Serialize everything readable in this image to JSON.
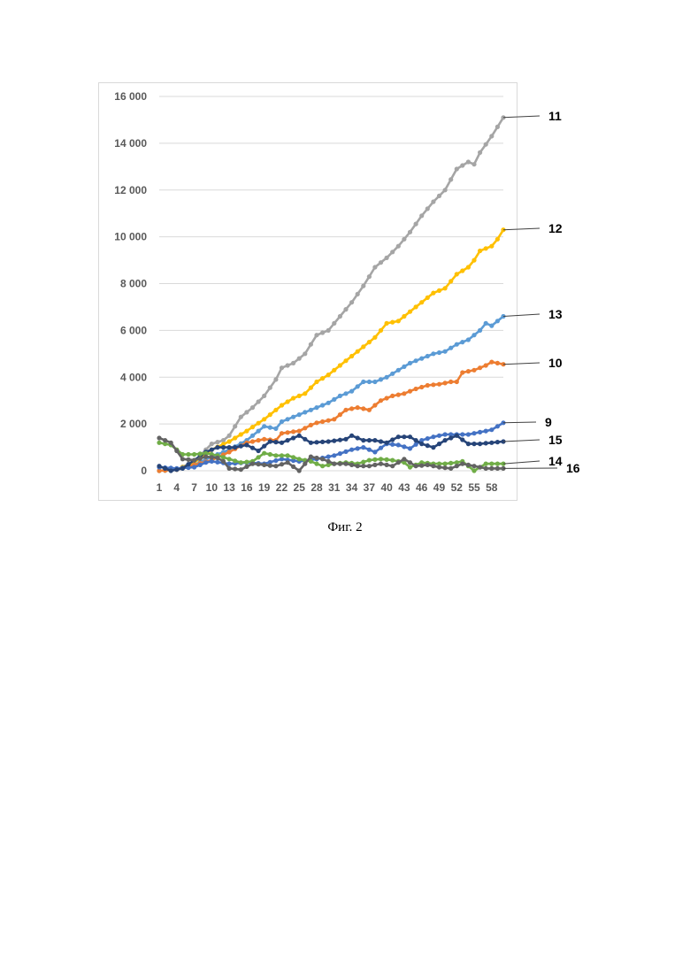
{
  "caption": "Фиг. 2",
  "chart_data": {
    "type": "line",
    "title": "",
    "xlabel": "",
    "ylabel": "",
    "ylim": [
      0,
      16000
    ],
    "yticks": [
      0,
      2000,
      4000,
      6000,
      8000,
      10000,
      12000,
      14000,
      16000
    ],
    "ytick_labels": [
      "0",
      "2 000",
      "4 000",
      "6 000",
      "8 000",
      "10 000",
      "12 000",
      "14 000",
      "16 000"
    ],
    "xlim": [
      1,
      60
    ],
    "xticks": [
      1,
      4,
      7,
      10,
      13,
      16,
      19,
      22,
      25,
      28,
      31,
      34,
      37,
      40,
      43,
      46,
      49,
      52,
      55,
      58
    ],
    "grid": "horizontal",
    "series": [
      {
        "name": "11",
        "color": "#a5a5a5",
        "points": [
          [
            1,
            0
          ],
          [
            4,
            50
          ],
          [
            7,
            400
          ],
          [
            10,
            1150
          ],
          [
            12,
            1300
          ],
          [
            13,
            1500
          ],
          [
            15,
            2300
          ],
          [
            17,
            2700
          ],
          [
            19,
            3200
          ],
          [
            21,
            3900
          ],
          [
            22,
            4400
          ],
          [
            24,
            4600
          ],
          [
            26,
            5000
          ],
          [
            28,
            5800
          ],
          [
            30,
            6000
          ],
          [
            32,
            6600
          ],
          [
            34,
            7200
          ],
          [
            36,
            7900
          ],
          [
            38,
            8700
          ],
          [
            40,
            9100
          ],
          [
            42,
            9600
          ],
          [
            44,
            10200
          ],
          [
            46,
            10900
          ],
          [
            48,
            11500
          ],
          [
            50,
            12000
          ],
          [
            52,
            12900
          ],
          [
            54,
            13200
          ],
          [
            55,
            13100
          ],
          [
            56,
            13600
          ],
          [
            58,
            14300
          ],
          [
            60,
            15100
          ]
        ]
      },
      {
        "name": "12",
        "color": "#ffc000",
        "points": [
          [
            1,
            0
          ],
          [
            4,
            50
          ],
          [
            7,
            350
          ],
          [
            10,
            900
          ],
          [
            13,
            1250
          ],
          [
            16,
            1700
          ],
          [
            19,
            2200
          ],
          [
            22,
            2800
          ],
          [
            24,
            3100
          ],
          [
            26,
            3300
          ],
          [
            28,
            3800
          ],
          [
            30,
            4100
          ],
          [
            32,
            4500
          ],
          [
            34,
            4900
          ],
          [
            36,
            5300
          ],
          [
            38,
            5700
          ],
          [
            40,
            6300
          ],
          [
            42,
            6400
          ],
          [
            44,
            6800
          ],
          [
            46,
            7200
          ],
          [
            48,
            7600
          ],
          [
            50,
            7800
          ],
          [
            52,
            8400
          ],
          [
            54,
            8700
          ],
          [
            55,
            9000
          ],
          [
            56,
            9400
          ],
          [
            58,
            9600
          ],
          [
            59,
            9900
          ],
          [
            60,
            10300
          ]
        ]
      },
      {
        "name": "13",
        "color": "#5b9bd5",
        "points": [
          [
            1,
            0
          ],
          [
            4,
            50
          ],
          [
            7,
            250
          ],
          [
            10,
            600
          ],
          [
            13,
            900
          ],
          [
            16,
            1300
          ],
          [
            19,
            1900
          ],
          [
            21,
            1800
          ],
          [
            22,
            2100
          ],
          [
            25,
            2400
          ],
          [
            28,
            2700
          ],
          [
            30,
            2900
          ],
          [
            32,
            3200
          ],
          [
            34,
            3400
          ],
          [
            36,
            3800
          ],
          [
            38,
            3800
          ],
          [
            40,
            4000
          ],
          [
            42,
            4300
          ],
          [
            44,
            4600
          ],
          [
            46,
            4800
          ],
          [
            48,
            5000
          ],
          [
            50,
            5100
          ],
          [
            52,
            5400
          ],
          [
            54,
            5600
          ],
          [
            56,
            6000
          ],
          [
            57,
            6300
          ],
          [
            58,
            6200
          ],
          [
            60,
            6600
          ]
        ]
      },
      {
        "name": "10",
        "color": "#ed7d31",
        "points": [
          [
            1,
            0
          ],
          [
            4,
            50
          ],
          [
            7,
            250
          ],
          [
            10,
            450
          ],
          [
            13,
            800
          ],
          [
            16,
            1200
          ],
          [
            19,
            1350
          ],
          [
            21,
            1300
          ],
          [
            22,
            1600
          ],
          [
            25,
            1700
          ],
          [
            27,
            1950
          ],
          [
            28,
            2050
          ],
          [
            31,
            2200
          ],
          [
            33,
            2600
          ],
          [
            35,
            2700
          ],
          [
            37,
            2600
          ],
          [
            39,
            3000
          ],
          [
            41,
            3200
          ],
          [
            43,
            3300
          ],
          [
            45,
            3500
          ],
          [
            47,
            3650
          ],
          [
            49,
            3700
          ],
          [
            51,
            3800
          ],
          [
            52,
            3800
          ],
          [
            53,
            4200
          ],
          [
            55,
            4300
          ],
          [
            57,
            4500
          ],
          [
            58,
            4650
          ],
          [
            60,
            4550
          ]
        ]
      },
      {
        "name": "9",
        "color": "#4472c4",
        "points": [
          [
            1,
            150
          ],
          [
            4,
            100
          ],
          [
            7,
            150
          ],
          [
            9,
            350
          ],
          [
            10,
            400
          ],
          [
            13,
            300
          ],
          [
            16,
            350
          ],
          [
            19,
            300
          ],
          [
            22,
            500
          ],
          [
            25,
            400
          ],
          [
            28,
            500
          ],
          [
            31,
            650
          ],
          [
            34,
            900
          ],
          [
            36,
            1000
          ],
          [
            38,
            800
          ],
          [
            40,
            1150
          ],
          [
            42,
            1100
          ],
          [
            44,
            950
          ],
          [
            46,
            1300
          ],
          [
            48,
            1450
          ],
          [
            50,
            1550
          ],
          [
            52,
            1550
          ],
          [
            54,
            1550
          ],
          [
            56,
            1650
          ],
          [
            58,
            1750
          ],
          [
            60,
            2050
          ]
        ]
      },
      {
        "name": "15",
        "color": "#264478",
        "points": [
          [
            1,
            200
          ],
          [
            3,
            0
          ],
          [
            5,
            100
          ],
          [
            7,
            450
          ],
          [
            9,
            800
          ],
          [
            11,
            1000
          ],
          [
            14,
            1000
          ],
          [
            16,
            1100
          ],
          [
            18,
            850
          ],
          [
            20,
            1250
          ],
          [
            22,
            1200
          ],
          [
            25,
            1500
          ],
          [
            27,
            1200
          ],
          [
            30,
            1250
          ],
          [
            33,
            1350
          ],
          [
            34,
            1500
          ],
          [
            36,
            1300
          ],
          [
            38,
            1300
          ],
          [
            40,
            1200
          ],
          [
            42,
            1450
          ],
          [
            44,
            1450
          ],
          [
            46,
            1150
          ],
          [
            48,
            1000
          ],
          [
            50,
            1300
          ],
          [
            52,
            1500
          ],
          [
            54,
            1150
          ],
          [
            56,
            1150
          ],
          [
            58,
            1200
          ],
          [
            60,
            1250
          ]
        ]
      },
      {
        "name": "14",
        "color": "#70ad47",
        "points": [
          [
            1,
            1200
          ],
          [
            3,
            1100
          ],
          [
            5,
            700
          ],
          [
            7,
            700
          ],
          [
            9,
            750
          ],
          [
            11,
            650
          ],
          [
            13,
            500
          ],
          [
            15,
            350
          ],
          [
            17,
            400
          ],
          [
            19,
            750
          ],
          [
            21,
            650
          ],
          [
            23,
            650
          ],
          [
            25,
            500
          ],
          [
            27,
            400
          ],
          [
            29,
            200
          ],
          [
            31,
            300
          ],
          [
            33,
            350
          ],
          [
            35,
            300
          ],
          [
            37,
            450
          ],
          [
            39,
            500
          ],
          [
            41,
            450
          ],
          [
            43,
            350
          ],
          [
            44,
            150
          ],
          [
            46,
            350
          ],
          [
            48,
            300
          ],
          [
            50,
            300
          ],
          [
            52,
            350
          ],
          [
            53,
            400
          ],
          [
            55,
            0
          ],
          [
            57,
            300
          ],
          [
            59,
            300
          ],
          [
            60,
            300
          ]
        ]
      },
      {
        "name": "16",
        "color": "#636363",
        "points": [
          [
            1,
            1400
          ],
          [
            3,
            1200
          ],
          [
            5,
            500
          ],
          [
            7,
            450
          ],
          [
            9,
            600
          ],
          [
            11,
            550
          ],
          [
            12,
            400
          ],
          [
            13,
            100
          ],
          [
            15,
            50
          ],
          [
            17,
            300
          ],
          [
            19,
            250
          ],
          [
            21,
            200
          ],
          [
            23,
            350
          ],
          [
            25,
            0
          ],
          [
            27,
            600
          ],
          [
            29,
            500
          ],
          [
            31,
            300
          ],
          [
            33,
            300
          ],
          [
            35,
            200
          ],
          [
            37,
            200
          ],
          [
            39,
            300
          ],
          [
            41,
            200
          ],
          [
            43,
            500
          ],
          [
            45,
            200
          ],
          [
            47,
            250
          ],
          [
            49,
            150
          ],
          [
            51,
            100
          ],
          [
            53,
            300
          ],
          [
            55,
            200
          ],
          [
            57,
            100
          ],
          [
            60,
            100
          ]
        ]
      }
    ]
  }
}
